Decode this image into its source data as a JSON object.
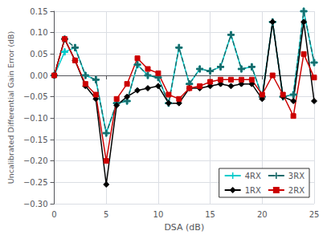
{
  "chart_data": {
    "type": "line",
    "xlabel": "DSA (dB)",
    "ylabel": "Uncalibrated Differential Gain Error (dB)",
    "x": [
      0,
      1,
      2,
      3,
      4,
      5,
      6,
      7,
      8,
      9,
      10,
      11,
      12,
      13,
      14,
      15,
      16,
      17,
      18,
      19,
      20,
      21,
      22,
      23,
      24,
      25
    ],
    "series": [
      {
        "name": "4RX",
        "color": "#00cccc",
        "marker": "plus",
        "line_style": "solid",
        "values": [
          0.0,
          0.055,
          0.065,
          0.0,
          -0.01,
          -0.135,
          -0.065,
          -0.06,
          0.025,
          0.0,
          -0.005,
          -0.065,
          0.065,
          -0.02,
          0.015,
          0.01,
          0.02,
          0.095,
          0.015,
          0.02,
          -0.05,
          0.125,
          -0.05,
          -0.045,
          0.15,
          0.03
        ]
      },
      {
        "name": "3RX",
        "color": "#1a6b6b",
        "marker": "plus",
        "line_style": "dashed",
        "values": [
          0.0,
          0.085,
          0.065,
          0.0,
          -0.01,
          -0.135,
          -0.065,
          -0.06,
          0.025,
          0.0,
          -0.005,
          -0.065,
          0.065,
          -0.02,
          0.015,
          0.01,
          0.02,
          0.095,
          0.015,
          0.02,
          -0.05,
          0.125,
          -0.05,
          -0.045,
          0.15,
          0.03
        ]
      },
      {
        "name": "1RX",
        "color": "#000000",
        "marker": "diamond",
        "line_style": "solid",
        "values": [
          0.0,
          0.085,
          0.035,
          -0.025,
          -0.055,
          -0.255,
          -0.07,
          -0.05,
          -0.035,
          -0.03,
          -0.025,
          -0.065,
          -0.065,
          -0.03,
          -0.03,
          -0.025,
          -0.02,
          -0.025,
          -0.02,
          -0.02,
          -0.055,
          0.125,
          -0.05,
          -0.06,
          0.125,
          -0.06
        ]
      },
      {
        "name": "2RX",
        "color": "#cc0000",
        "marker": "square",
        "line_style": "solid",
        "values": [
          0.0,
          0.085,
          0.035,
          -0.02,
          -0.045,
          -0.2,
          -0.055,
          -0.02,
          0.04,
          0.015,
          0.005,
          -0.045,
          -0.055,
          -0.03,
          -0.025,
          -0.015,
          -0.01,
          -0.01,
          -0.01,
          -0.01,
          -0.045,
          0.0,
          -0.045,
          -0.095,
          0.05,
          -0.005
        ]
      }
    ],
    "xlim": [
      0,
      25
    ],
    "ylim": [
      -0.3,
      0.15
    ],
    "xticks": [
      0,
      5,
      10,
      15,
      20,
      25
    ],
    "yticks": [
      {
        "value": -0.3,
        "label": "−0.30"
      },
      {
        "value": -0.25,
        "label": "−0.25"
      },
      {
        "value": -0.2,
        "label": "−0.20"
      },
      {
        "value": -0.15,
        "label": "−0.15"
      },
      {
        "value": -0.1,
        "label": "−0.10"
      },
      {
        "value": -0.05,
        "label": "−0.05"
      },
      {
        "value": 0,
        "label": "0.00"
      },
      {
        "value": 0.05,
        "label": "0.05"
      },
      {
        "value": 0.1,
        "label": "0.10"
      },
      {
        "value": 0.15,
        "label": "0.15"
      }
    ],
    "grid": true,
    "legend": "lower right"
  }
}
